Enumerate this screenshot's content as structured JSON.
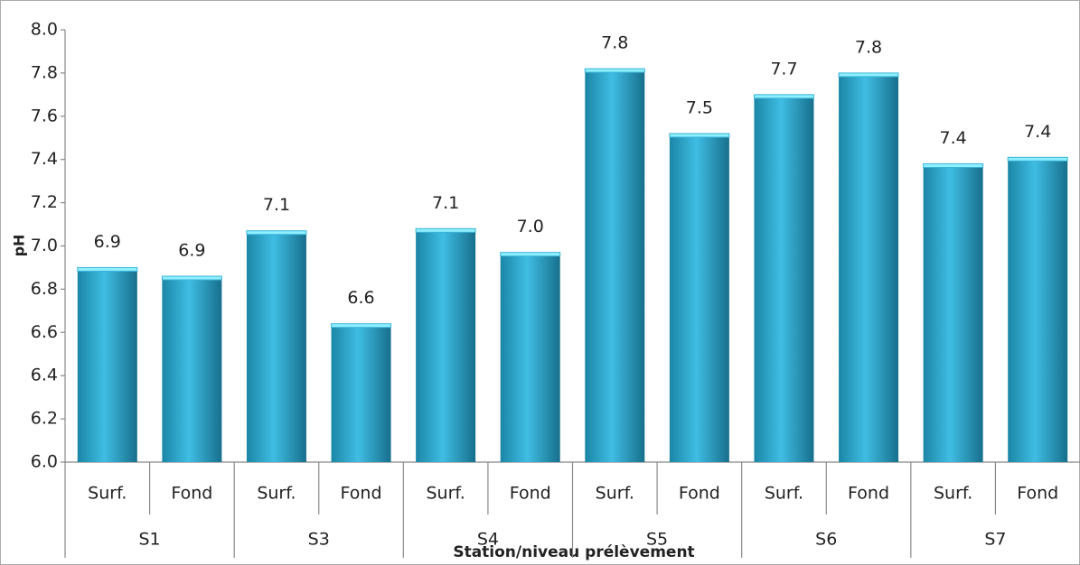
{
  "chart_data": {
    "type": "bar",
    "y_label": "pH",
    "x_label": "Station/niveau prélèvement",
    "categories": [
      "Surf.",
      "Fond",
      "Surf.",
      "Fond",
      "Surf.",
      "Fond",
      "Surf.",
      "Fond",
      "Surf.",
      "Fond",
      "Surf.",
      "Fond"
    ],
    "groups": [
      "S1",
      "S3",
      "S4",
      "S5",
      "S6",
      "S7"
    ],
    "values": [
      6.9,
      6.86,
      7.07,
      6.64,
      7.08,
      6.97,
      7.82,
      7.52,
      7.7,
      7.8,
      7.38,
      7.41
    ],
    "value_labels": [
      "6.9",
      "6.9",
      "7.1",
      "6.6",
      "7.1",
      "7.0",
      "7.8",
      "7.5",
      "7.7",
      "7.8",
      "7.4",
      "7.4"
    ],
    "color": "#3bb3d9",
    "ylim": [
      6.0,
      8.0
    ],
    "yticks": [
      {
        "value": 6.0,
        "label": "6.0"
      },
      6.2,
      6.4,
      6.6,
      6.8,
      {
        "value": 7.0,
        "label": "7.0"
      },
      7.2,
      7.4,
      7.6,
      7.8,
      {
        "value": 8.0,
        "label": "8.0"
      }
    ],
    "grid": false
  }
}
